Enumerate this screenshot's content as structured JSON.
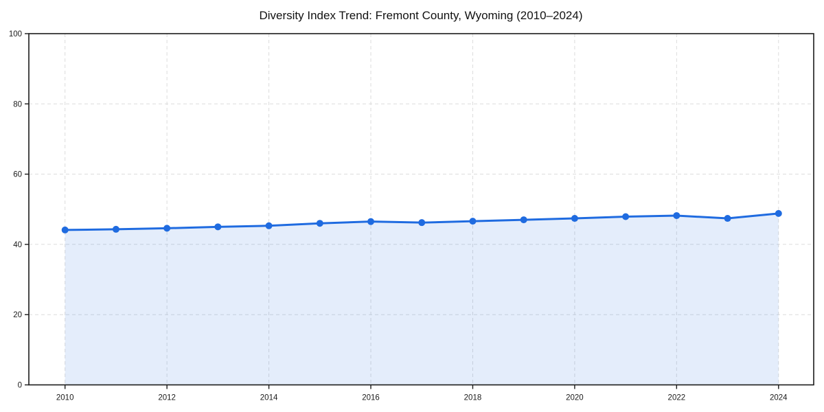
{
  "page": {
    "background_color": "#ffffff"
  },
  "chart_data": {
    "type": "area",
    "title": "Diversity Index Trend: Fremont County, Wyoming (2010–2024)",
    "x": [
      2010,
      2011,
      2012,
      2013,
      2014,
      2015,
      2016,
      2017,
      2018,
      2019,
      2020,
      2021,
      2022,
      2023,
      2024
    ],
    "series": [
      {
        "name": "Diversity Index",
        "values": [
          44.1,
          44.3,
          44.6,
          45.0,
          45.3,
          46.0,
          46.5,
          46.2,
          46.6,
          47.0,
          47.4,
          47.9,
          48.2,
          47.4,
          48.8
        ]
      }
    ],
    "xlabel": "",
    "ylabel": "",
    "xlim": [
      2009.29,
      2024.69
    ],
    "ylim": [
      0,
      100
    ],
    "xticks": [
      2010,
      2012,
      2014,
      2016,
      2018,
      2020,
      2022,
      2024
    ],
    "yticks": [
      0,
      20,
      40,
      60,
      80,
      100
    ],
    "grid": true,
    "grid_style": "dashed",
    "legend": "none",
    "colors": {
      "line": "#1f6be0",
      "fill": "rgba(31,107,224,0.12)",
      "grid": "#dcdcdc",
      "spine": "#1a1a1a",
      "marker": "#1f6be0"
    },
    "marker": "circle"
  }
}
